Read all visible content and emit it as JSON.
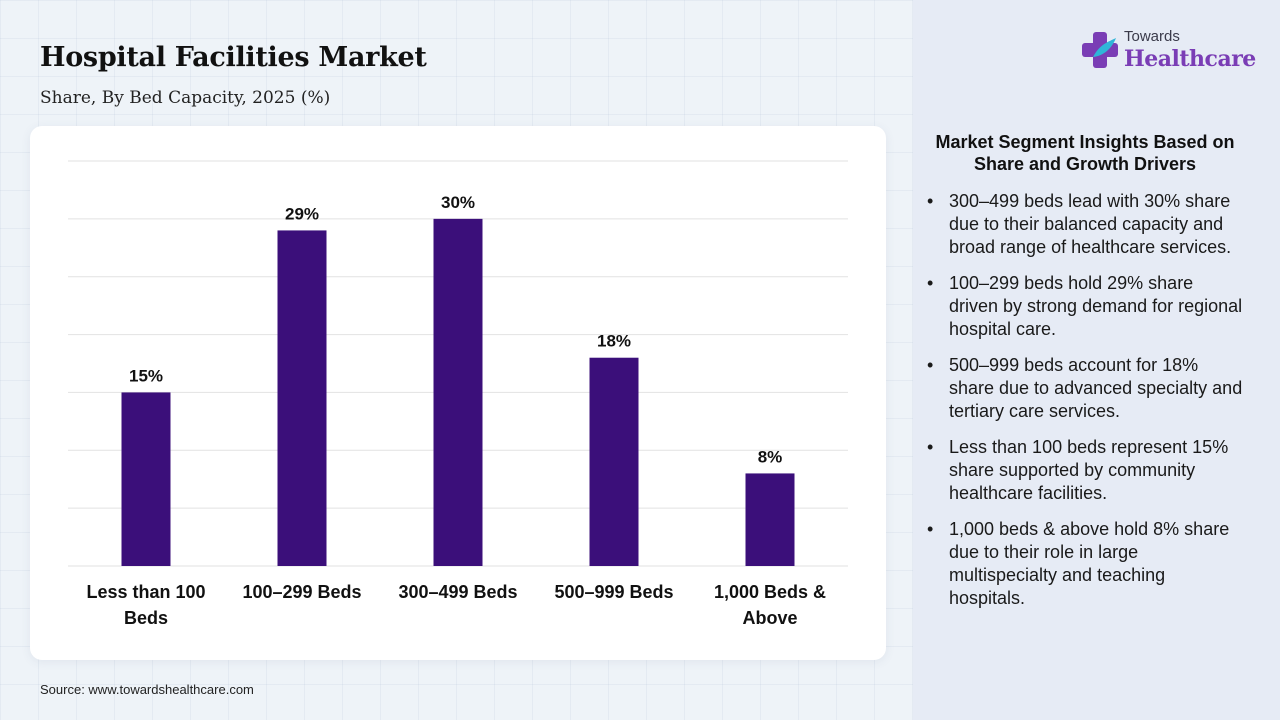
{
  "header": {
    "title": "Hospital Facilities Market",
    "subtitle": "Share, By Bed Capacity, 2025 (%)"
  },
  "logo": {
    "top_text": "Towards",
    "main_text": "Healthcare",
    "icon": "medical-cross-logo-icon",
    "colors": {
      "primary": "#7a3db5",
      "accent": "#2fb5d8"
    }
  },
  "source": "Source: www.towardshealthcare.com",
  "insights": {
    "title": "Market Segment Insights Based on Share and Growth Drivers",
    "items": [
      "300–499 beds lead with 30% share due to their balanced capacity and broad range of healthcare services.",
      "100–299 beds hold 29% share driven by strong demand for regional hospital care.",
      "500–999 beds account for 18% share due to advanced specialty and tertiary care services.",
      "Less than 100 beds represent 15% share supported by community healthcare facilities.",
      "1,000 beds & above hold 8% share due to their role in large multispecialty and teaching hospitals."
    ]
  },
  "chart_data": {
    "type": "bar",
    "title": "Hospital Facilities Market",
    "subtitle": "Share, By Bed Capacity, 2025 (%)",
    "categories": [
      [
        "Less than 100",
        "Beds"
      ],
      [
        "100–299 Beds"
      ],
      [
        "300–499 Beds"
      ],
      [
        "500–999 Beds"
      ],
      [
        "1,000 Beds &",
        "Above"
      ]
    ],
    "values": [
      15,
      29,
      30,
      18,
      8
    ],
    "data_labels": [
      "15%",
      "29%",
      "30%",
      "18%",
      "8%"
    ],
    "ylim": [
      0,
      35
    ],
    "grid": true,
    "y_tick_labels": false,
    "legend": "none",
    "colors": {
      "bar": "#3b0f7a",
      "grid": "#e2e2e2"
    }
  }
}
